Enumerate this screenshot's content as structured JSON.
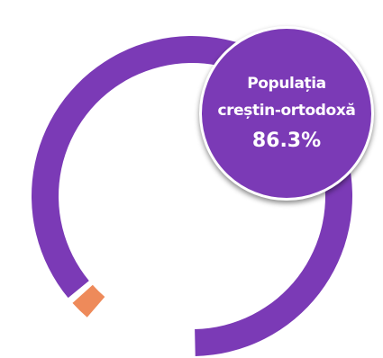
{
  "colors": {
    "primary": "#7b3ab6",
    "secondary": "#ee8a5a",
    "background": "#ffffff"
  },
  "badge": {
    "line1": "Populația",
    "line2": "creștin-ortodoxă",
    "value": "86.3%"
  },
  "chart_data": {
    "type": "pie",
    "variant": "donut",
    "slices": [
      {
        "value": 86.3,
        "color": "#7b3ab6"
      },
      {
        "value": 2.7,
        "color": "#ee8a5a"
      },
      {
        "value": 11.0,
        "color": "#ffffff"
      }
    ],
    "start": "bottom",
    "direction": "counterclockwise",
    "title": "",
    "legend": "none"
  }
}
